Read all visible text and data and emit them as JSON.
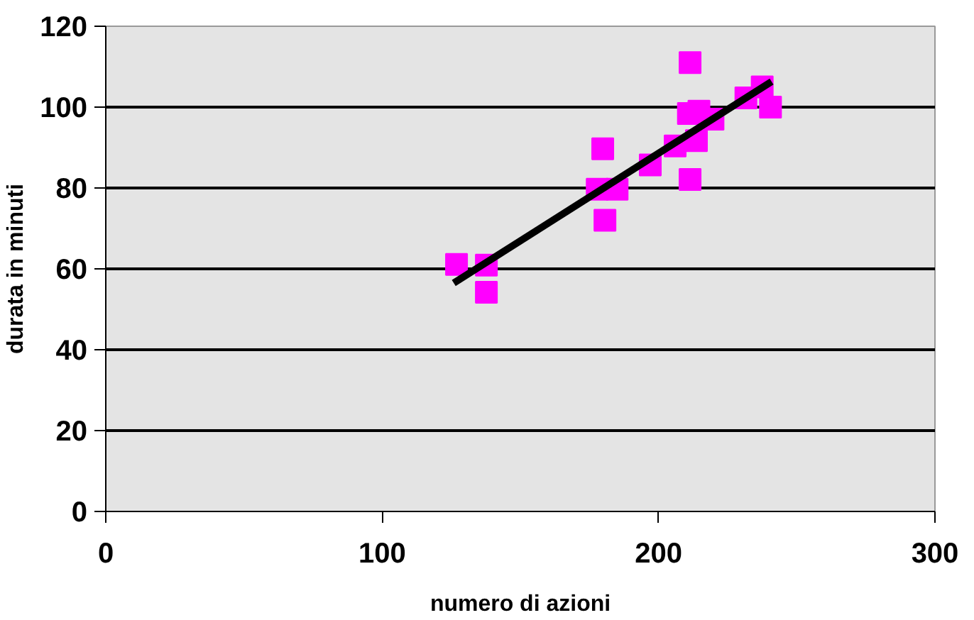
{
  "chart_data": {
    "type": "scatter",
    "xlabel": "numero di azioni",
    "ylabel": "durata in minuti",
    "xlim": [
      0,
      300
    ],
    "ylim": [
      0,
      120
    ],
    "xticks": [
      0,
      100,
      200,
      300
    ],
    "yticks": [
      0,
      20,
      40,
      60,
      80,
      100,
      120
    ],
    "grid": "y",
    "series": [
      {
        "marker": "square",
        "color": "#ff00ff",
        "x": [
          126.9,
          137.7,
          137.7,
          179.8,
          177.8,
          185,
          180.6,
          197,
          206,
          211.4,
          211.4,
          210.8,
          213.7,
          219.7,
          214.6,
          231.6,
          237.5,
          240.5
        ],
        "values": [
          61.1,
          60.9,
          54.2,
          89.7,
          79.7,
          79.7,
          72,
          85.7,
          90.4,
          111,
          82.1,
          98.4,
          91.7,
          97,
          99,
          102.3,
          105,
          100
        ]
      },
      {
        "type": "line",
        "color": "#000000",
        "x": [
          125.9,
          240.9
        ],
        "values": [
          56.5,
          106.3
        ]
      }
    ]
  }
}
